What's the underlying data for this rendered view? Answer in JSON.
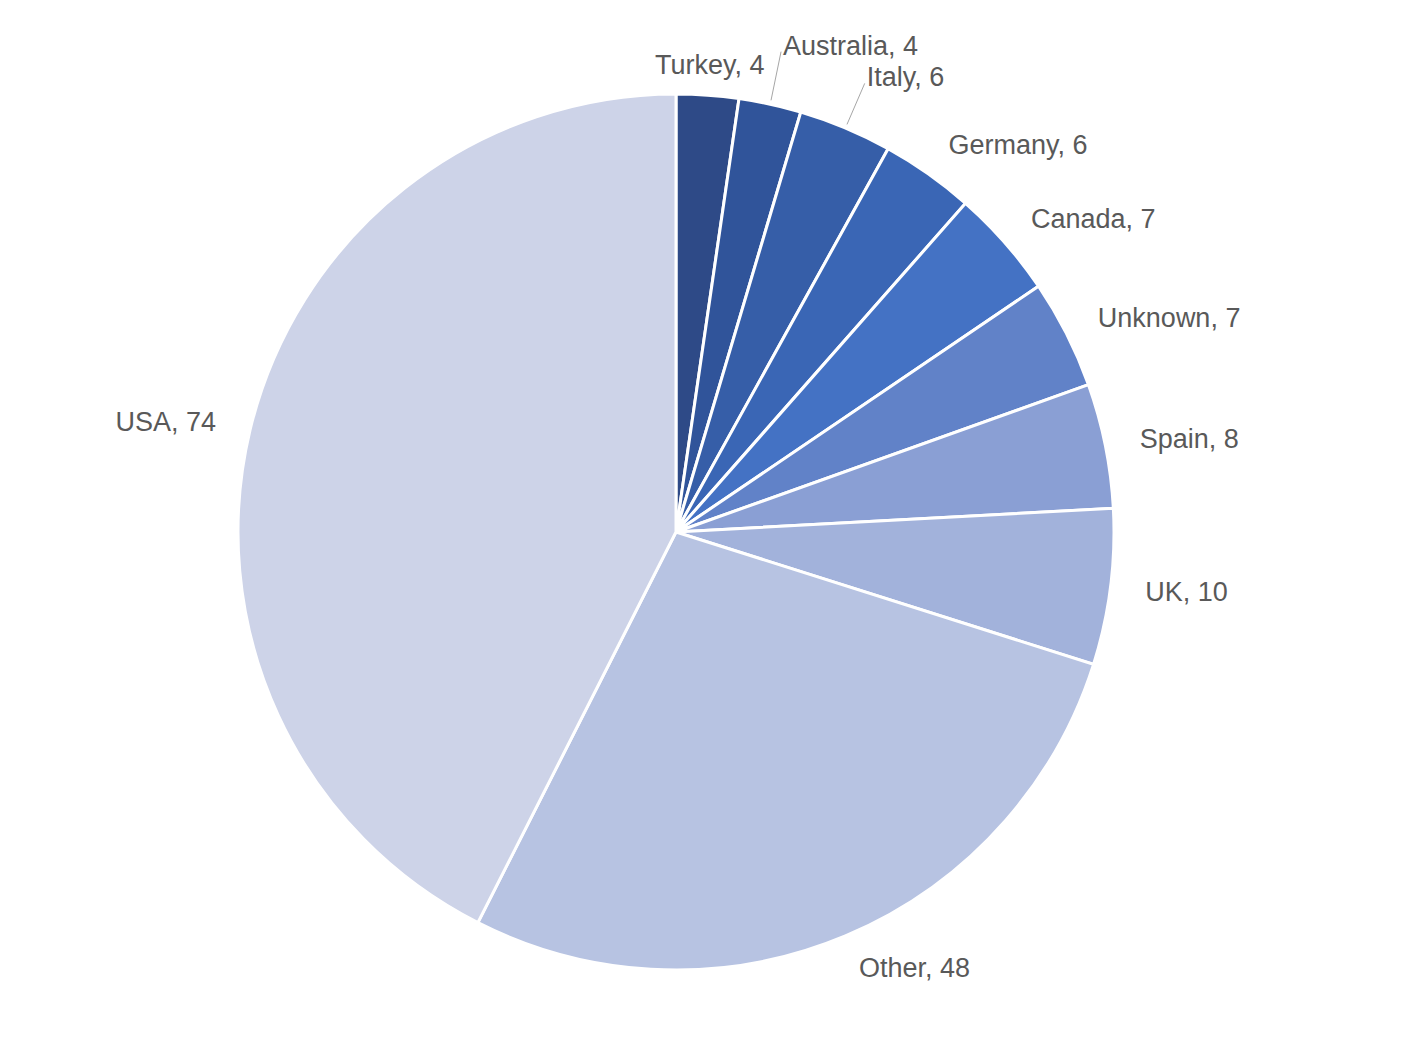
{
  "chart_data": {
    "type": "pie",
    "categories": [
      "Turkey",
      "Australia",
      "Italy",
      "Germany",
      "Canada",
      "Unknown",
      "Spain",
      "UK",
      "Other",
      "USA"
    ],
    "values": [
      4,
      4,
      6,
      6,
      7,
      7,
      8,
      10,
      48,
      74
    ],
    "value_labels": [
      "Turkey, 4",
      "Australia, 4",
      "Italy, 6",
      "Germany, 6",
      "Canada, 7",
      "Unknown, 7",
      "Spain, 8",
      "UK, 10",
      "Other, 48",
      "USA, 74"
    ],
    "colors": [
      "#2e4a87",
      "#30549a",
      "#365ea8",
      "#3a66b5",
      "#4472c4",
      "#6182c8",
      "#8a9fd4",
      "#a2b2db",
      "#b7c3e2",
      "#cdd3e8"
    ],
    "data_labels": true
  }
}
